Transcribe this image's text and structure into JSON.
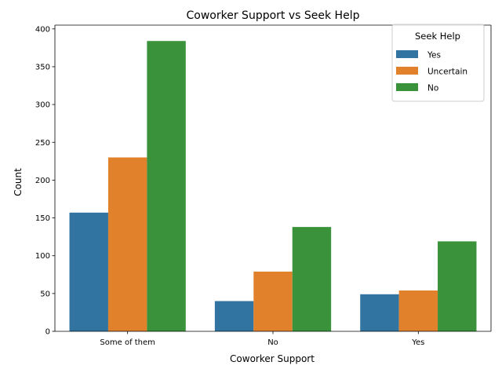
{
  "chart_data": {
    "type": "bar",
    "title": "Coworker Support vs Seek Help",
    "xlabel": "Coworker Support",
    "ylabel": "Count",
    "categories": [
      "Some of them",
      "No",
      "Yes"
    ],
    "series": [
      {
        "name": "Yes",
        "values": [
          157,
          40,
          49
        ],
        "color": "#3274a1"
      },
      {
        "name": "Uncertain",
        "values": [
          230,
          79,
          54
        ],
        "color": "#e1812c"
      },
      {
        "name": "No",
        "values": [
          384,
          138,
          119
        ],
        "color": "#3a923a"
      }
    ],
    "ylim": [
      0,
      405
    ],
    "yticks": [
      0,
      50,
      100,
      150,
      200,
      250,
      300,
      350,
      400
    ],
    "legend": {
      "title": "Seek Help",
      "position": "top-right"
    },
    "grid": false
  }
}
